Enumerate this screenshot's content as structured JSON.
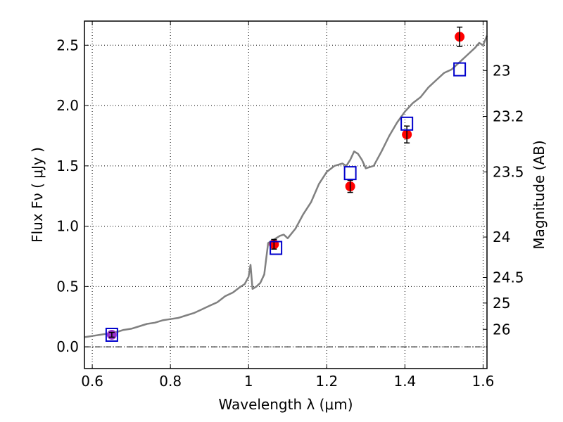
{
  "chart_data": {
    "type": "line",
    "title": "",
    "xlabel": "Wavelength  λ (μm)",
    "ylabel": "Flux  Fν  ( μJy )",
    "ylabel_right": "Magnitude (AB)",
    "xlim": [
      0.58,
      1.61
    ],
    "ylim": [
      -0.18,
      2.7
    ],
    "grid": true,
    "x_ticks": [
      0.6,
      0.8,
      1.0,
      1.2,
      1.4,
      1.6
    ],
    "x_tick_labels": [
      "0.6",
      "0.8",
      "1",
      "1.2",
      "1.4",
      "1.6"
    ],
    "y_ticks": [
      0.0,
      0.5,
      1.0,
      1.5,
      2.0,
      2.5
    ],
    "y_tick_labels": [
      "0.0",
      "0.5",
      "1.0",
      "1.5",
      "2.0",
      "2.5"
    ],
    "right_axis_ticks": [
      {
        "label": "23",
        "flux": 2.29
      },
      {
        "label": "23.2",
        "flux": 1.91
      },
      {
        "label": "23.5",
        "flux": 1.45
      },
      {
        "label": "24",
        "flux": 0.91
      },
      {
        "label": "24.5",
        "flux": 0.575
      },
      {
        "label": "25",
        "flux": 0.363
      },
      {
        "label": "26",
        "flux": 0.145
      }
    ],
    "colors": {
      "model": "#808080",
      "observed": "#ff0000",
      "synthetic": "#0000cc",
      "highlight": "#9932cc"
    },
    "model_spectrum": {
      "x": [
        0.58,
        0.6,
        0.62,
        0.64,
        0.66,
        0.68,
        0.7,
        0.72,
        0.74,
        0.76,
        0.78,
        0.8,
        0.82,
        0.84,
        0.86,
        0.88,
        0.9,
        0.92,
        0.94,
        0.96,
        0.98,
        0.99,
        1.0,
        1.005,
        1.01,
        1.02,
        1.03,
        1.04,
        1.05,
        1.06,
        1.07,
        1.08,
        1.09,
        1.1,
        1.12,
        1.14,
        1.16,
        1.18,
        1.2,
        1.22,
        1.24,
        1.25,
        1.26,
        1.27,
        1.28,
        1.29,
        1.3,
        1.32,
        1.34,
        1.36,
        1.38,
        1.4,
        1.42,
        1.44,
        1.46,
        1.48,
        1.5,
        1.52,
        1.54,
        1.56,
        1.58,
        1.59,
        1.6,
        1.61
      ],
      "y": [
        0.08,
        0.09,
        0.1,
        0.11,
        0.12,
        0.14,
        0.15,
        0.17,
        0.19,
        0.2,
        0.22,
        0.23,
        0.24,
        0.26,
        0.28,
        0.31,
        0.34,
        0.37,
        0.42,
        0.45,
        0.5,
        0.52,
        0.58,
        0.68,
        0.48,
        0.5,
        0.53,
        0.6,
        0.86,
        0.88,
        0.9,
        0.92,
        0.93,
        0.9,
        0.98,
        1.1,
        1.2,
        1.35,
        1.45,
        1.5,
        1.52,
        1.5,
        1.55,
        1.62,
        1.6,
        1.55,
        1.48,
        1.5,
        1.62,
        1.75,
        1.86,
        1.95,
        2.02,
        2.07,
        2.15,
        2.21,
        2.27,
        2.3,
        2.36,
        2.42,
        2.48,
        2.52,
        2.5,
        2.58
      ]
    },
    "observed": [
      {
        "x": 0.65,
        "y": 0.1,
        "err": 0.02
      },
      {
        "x": 1.065,
        "y": 0.85,
        "err": 0.04
      },
      {
        "x": 1.26,
        "y": 1.33,
        "err": 0.05
      },
      {
        "x": 1.405,
        "y": 1.76,
        "err": 0.07
      },
      {
        "x": 1.54,
        "y": 2.57,
        "err": 0.08
      }
    ],
    "synthetic": [
      {
        "x": 0.65,
        "y": 0.1
      },
      {
        "x": 1.07,
        "y": 0.82
      },
      {
        "x": 1.26,
        "y": 1.44
      },
      {
        "x": 1.405,
        "y": 1.85
      },
      {
        "x": 1.54,
        "y": 2.3
      }
    ]
  }
}
